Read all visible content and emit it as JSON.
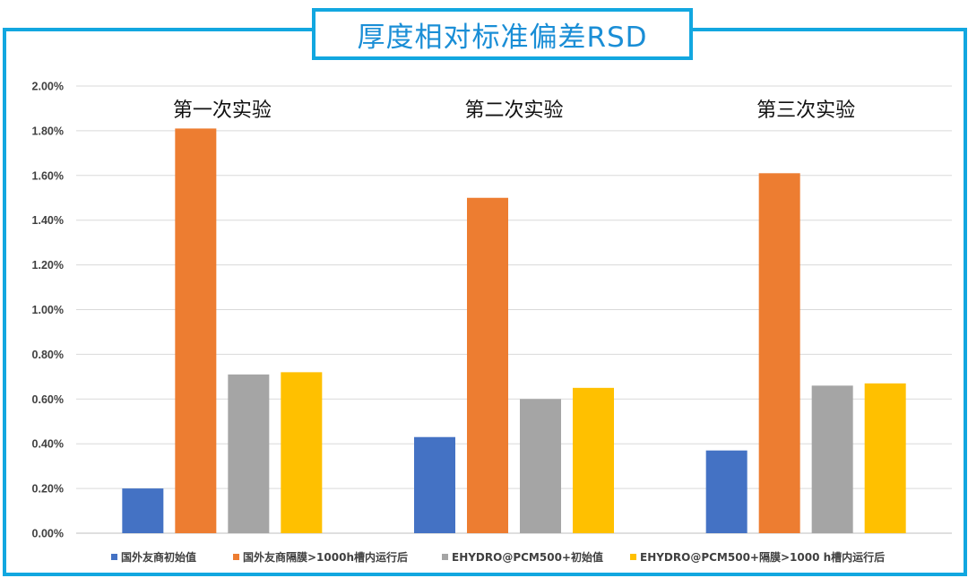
{
  "chart_data": {
    "type": "bar",
    "title": "厚度相对标准偏差RSD",
    "categories": [
      "第一次实验",
      "第二次实验",
      "第三次实验"
    ],
    "series": [
      {
        "name": "国外友商初始值",
        "color": "#4472c4",
        "values": [
          0.2,
          0.43,
          0.37
        ]
      },
      {
        "name": "国外友商隔膜>1000h槽内运行后",
        "color": "#ed7d31",
        "values": [
          1.81,
          1.5,
          1.61
        ]
      },
      {
        "name": "EHYDRO@PCM500+初始值",
        "color": "#a5a5a5",
        "values": [
          0.71,
          0.6,
          0.66
        ]
      },
      {
        "name": "EHYDRO@PCM500+隔膜>1000 h槽内运行后",
        "color": "#ffc000",
        "values": [
          0.72,
          0.65,
          0.67
        ]
      }
    ],
    "ylim": [
      0,
      2.0
    ],
    "yticks": [
      "0.00%",
      "0.20%",
      "0.40%",
      "0.60%",
      "0.80%",
      "1.00%",
      "1.20%",
      "1.40%",
      "1.60%",
      "1.80%",
      "2.00%"
    ],
    "unit": "%",
    "grid": true,
    "legend_position": "bottom",
    "frame_color": "#12a7e0"
  }
}
